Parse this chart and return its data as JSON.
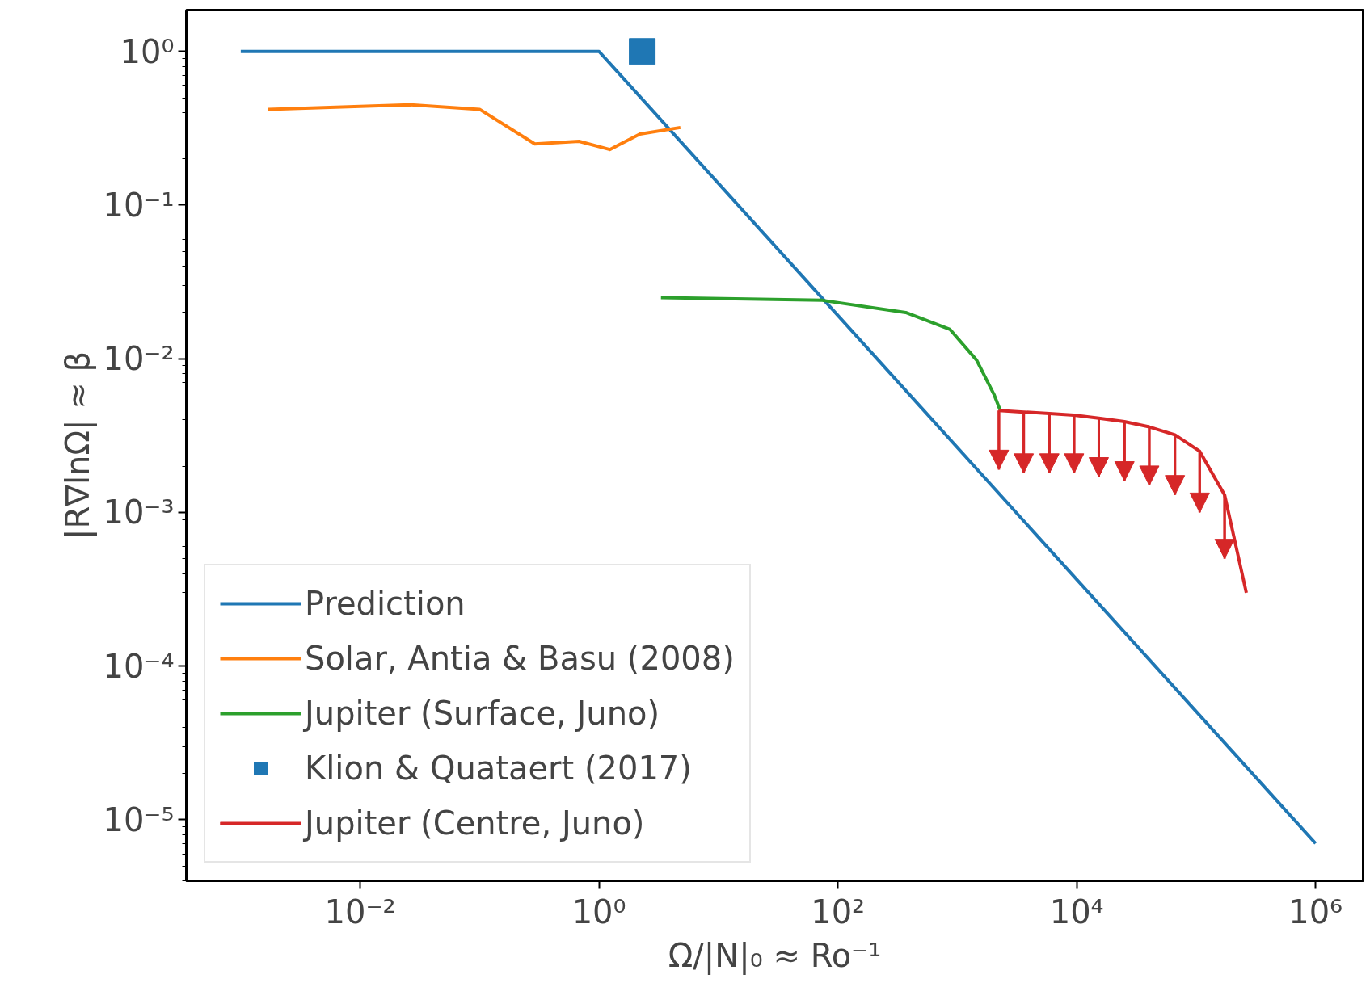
{
  "chart_data": {
    "type": "line",
    "xlabel": "Ω/|N|₀ ≈ Ro⁻¹",
    "ylabel": "|R∇lnΩ| ≈ β",
    "log": "xy",
    "grid": false,
    "legend": "bottom left",
    "xlim": [
      0.00035,
      2500000
    ],
    "ylim": [
      4e-06,
      1.86
    ],
    "xticks": [
      {
        "value": 0.01,
        "label": "10⁻²"
      },
      {
        "value": 1,
        "label": "10⁰"
      },
      {
        "value": 100,
        "label": "10²"
      },
      {
        "value": 10000,
        "label": "10⁴"
      },
      {
        "value": 1000000,
        "label": "10⁶"
      }
    ],
    "yticks": [
      {
        "value": 1e-05,
        "label": "10⁻⁵"
      },
      {
        "value": 0.0001,
        "label": "10⁻⁴"
      },
      {
        "value": 0.001,
        "label": "10⁻³"
      },
      {
        "value": 0.01,
        "label": "10⁻²"
      },
      {
        "value": 0.1,
        "label": "10⁻¹"
      },
      {
        "value": 1,
        "label": "10⁰"
      }
    ],
    "series": [
      {
        "name": "Prediction",
        "color": "#1f77b4",
        "x": [
          0.001,
          1,
          1000000
        ],
        "values": [
          1,
          1,
          7e-06
        ]
      },
      {
        "name": "Solar, Antia & Basu (2008)",
        "color": "#ff7f0e",
        "x": [
          0.0017,
          0.026,
          0.1,
          0.29,
          0.68,
          1.23,
          2.2,
          4.8
        ],
        "values": [
          0.42,
          0.45,
          0.42,
          0.25,
          0.26,
          0.23,
          0.29,
          0.32
        ]
      },
      {
        "name": "Jupiter (Surface, Juno)",
        "color": "#2ca02c",
        "x": [
          3.3,
          74,
          370,
          870,
          1450,
          2040,
          2290
        ],
        "values": [
          0.025,
          0.024,
          0.02,
          0.0155,
          0.0098,
          0.0058,
          0.0046
        ]
      },
      {
        "name": "Klion & Quataert (2017)",
        "type": "scatter",
        "marker": "square",
        "color": "#1f77b4",
        "x": [
          2.3
        ],
        "values": [
          1
        ]
      },
      {
        "name": "Jupiter (Centre, Juno)",
        "color": "#d62728",
        "x": [
          2230,
          3600,
          5900,
          9500,
          15300,
          25100,
          40500,
          66400,
          107000,
          173000,
          263000
        ],
        "values": [
          0.0046,
          0.0045,
          0.0044,
          0.0043,
          0.0041,
          0.0039,
          0.0036,
          0.0032,
          0.0025,
          0.0013,
          0.0003
        ],
        "errors": [
          [
            0.0019,
            0.0046
          ],
          [
            0.0018,
            0.0045
          ],
          [
            0.0018,
            0.0044
          ],
          [
            0.0018,
            0.0043
          ],
          [
            0.0017,
            0.0041
          ],
          [
            0.0016,
            0.0039
          ],
          [
            0.0015,
            0.0036
          ],
          [
            0.0013,
            0.0032
          ],
          [
            0.001,
            0.0025
          ],
          [
            0.0005,
            0.0013
          ],
          null
        ]
      }
    ]
  }
}
